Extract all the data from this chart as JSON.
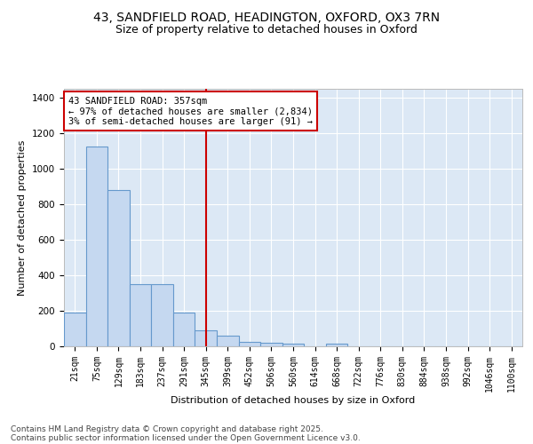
{
  "title_line1": "43, SANDFIELD ROAD, HEADINGTON, OXFORD, OX3 7RN",
  "title_line2": "Size of property relative to detached houses in Oxford",
  "xlabel": "Distribution of detached houses by size in Oxford",
  "ylabel": "Number of detached properties",
  "categories": [
    "21sqm",
    "75sqm",
    "129sqm",
    "183sqm",
    "237sqm",
    "291sqm",
    "345sqm",
    "399sqm",
    "452sqm",
    "506sqm",
    "560sqm",
    "614sqm",
    "668sqm",
    "722sqm",
    "776sqm",
    "830sqm",
    "884sqm",
    "938sqm",
    "992sqm",
    "1046sqm",
    "1100sqm"
  ],
  "bar_heights": [
    190,
    1125,
    880,
    350,
    350,
    190,
    90,
    60,
    25,
    18,
    15,
    0,
    14,
    0,
    0,
    0,
    0,
    0,
    0,
    0,
    0
  ],
  "bar_color": "#c5d8f0",
  "bar_edge_color": "#6699cc",
  "vline_x": 6.0,
  "vline_color": "#cc0000",
  "annotation_text": "43 SANDFIELD ROAD: 357sqm\n← 97% of detached houses are smaller (2,834)\n3% of semi-detached houses are larger (91) →",
  "annotation_box_color": "#cc0000",
  "annotation_fill": "#ffffff",
  "ylim": [
    0,
    1450
  ],
  "yticks": [
    0,
    200,
    400,
    600,
    800,
    1000,
    1200,
    1400
  ],
  "background_color": "#dce8f5",
  "grid_color": "#ffffff",
  "footer_line1": "Contains HM Land Registry data © Crown copyright and database right 2025.",
  "footer_line2": "Contains public sector information licensed under the Open Government Licence v3.0.",
  "title_fontsize": 10,
  "subtitle_fontsize": 9,
  "axis_fontsize": 8,
  "tick_fontsize": 7.5,
  "annotation_fontsize": 7.5,
  "footer_fontsize": 6.5
}
